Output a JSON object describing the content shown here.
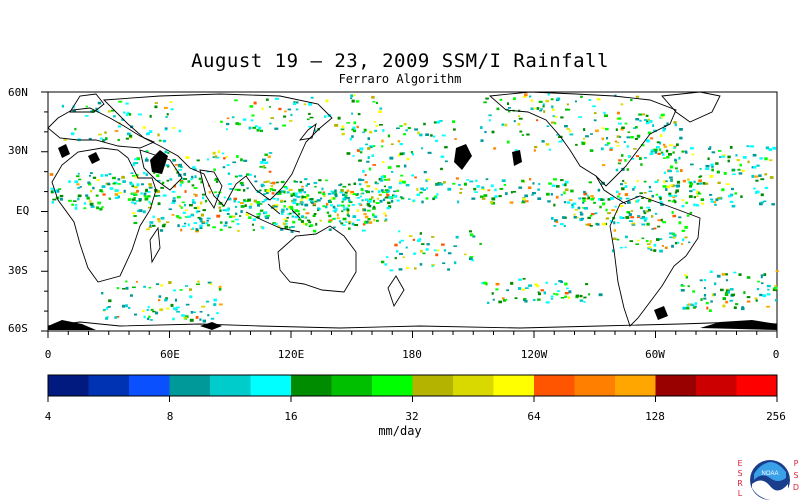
{
  "title": "August 19 – 23, 2009 SSM/I Rainfall",
  "subtitle": "Ferraro Algorithm",
  "lat_labels": [
    "60N",
    "30N",
    "EQ",
    "30S",
    "60S"
  ],
  "lon_labels": [
    "0",
    "60E",
    "120E",
    "180",
    "120W",
    "60W",
    "0"
  ],
  "colorbar": {
    "colors": [
      "#001a80",
      "#0033b3",
      "#0a50ff",
      "#009999",
      "#00cccc",
      "#00ffff",
      "#008c00",
      "#00bf00",
      "#00ff00",
      "#b3b300",
      "#d9d900",
      "#ffff00",
      "#ff5500",
      "#ff8000",
      "#ffa600",
      "#990000",
      "#cc0000",
      "#ff0000"
    ],
    "tick_labels": [
      "4",
      "8",
      "16",
      "32",
      "64",
      "128",
      "256"
    ],
    "units": "mm/day"
  },
  "logo": {
    "left_letters": [
      "E",
      "S",
      "R",
      "L"
    ],
    "right_letters": [
      "P",
      "S",
      "D"
    ],
    "name": "NOAA",
    "icon": "noaa-logo-icon"
  }
}
